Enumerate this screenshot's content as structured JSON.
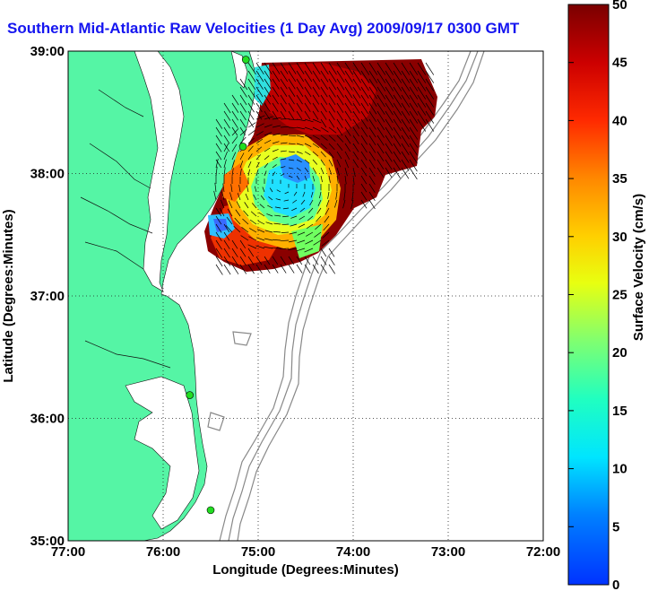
{
  "title": "Southern Mid-Atlantic Raw Velocities (1 Day Avg) 2009/09/17 0300 GMT",
  "map": {
    "x_axis_label": "Longitude (Degrees:Minutes)",
    "y_axis_label": "Latitude (Degrees:Minutes)",
    "lon_range": [
      -77,
      -72
    ],
    "lat_range": [
      35,
      39
    ],
    "x_ticks": [
      {
        "value": -77,
        "label": "77:00"
      },
      {
        "value": -76,
        "label": "76:00"
      },
      {
        "value": -75,
        "label": "75:00"
      },
      {
        "value": -74,
        "label": "74:00"
      },
      {
        "value": -73,
        "label": "73:00"
      },
      {
        "value": -72,
        "label": "72:00"
      }
    ],
    "y_ticks": [
      {
        "value": 39,
        "label": "39:00"
      },
      {
        "value": 38,
        "label": "38:00"
      },
      {
        "value": 37,
        "label": "37:00"
      },
      {
        "value": 36,
        "label": "36:00"
      },
      {
        "value": 35,
        "label": "35:00"
      }
    ],
    "grid": "dotted",
    "land_color": "#55f5a5",
    "bathymetry_color": "#888888",
    "station_color": "#22dd22",
    "stations": [
      {
        "lon": -75.13,
        "lat": 38.93
      },
      {
        "lon": -75.16,
        "lat": 38.22
      },
      {
        "lon": -75.72,
        "lat": 36.19
      },
      {
        "lon": -75.5,
        "lat": 35.25
      }
    ]
  },
  "colorbar": {
    "label": "Surface Velocity (cm/s)",
    "min": 0,
    "max": 50,
    "ticks": [
      "50",
      "45",
      "40",
      "35",
      "30",
      "25",
      "20",
      "15",
      "10",
      "5",
      "0"
    ],
    "colormap": "jet"
  }
}
